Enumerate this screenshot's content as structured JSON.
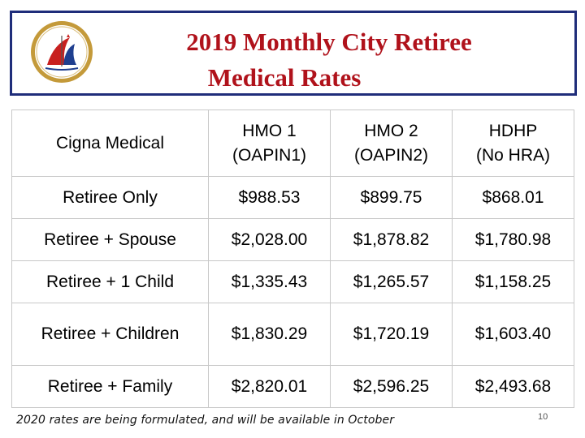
{
  "title": {
    "line1": "2019 Monthly City Retiree",
    "line2": "Medical Rates"
  },
  "table": {
    "headers": [
      {
        "line1": "Cigna Medical",
        "line2": ""
      },
      {
        "line1": "HMO 1",
        "line2": "(OAPIN1)"
      },
      {
        "line1": "HMO 2",
        "line2": "(OAPIN2)"
      },
      {
        "line1": "HDHP",
        "line2": "(No HRA)"
      }
    ],
    "rows": [
      {
        "label": "Retiree Only",
        "hmo1": "$988.53",
        "hmo2": "$899.75",
        "hdhp": "$868.01"
      },
      {
        "label": "Retiree + Spouse",
        "hmo1": "$2,028.00",
        "hmo2": "$1,878.82",
        "hdhp": "$1,780.98"
      },
      {
        "label": "Retiree + 1 Child",
        "hmo1": "$1,335.43",
        "hmo2": "$1,265.57",
        "hdhp": "$1,158.25"
      },
      {
        "label": "Retiree + Children",
        "hmo1": "$1,830.29",
        "hmo2": "$1,720.19",
        "hdhp": "$1,603.40"
      },
      {
        "label": "Retiree + Family",
        "hmo1": "$2,820.01",
        "hmo2": "$2,596.25",
        "hdhp": "$2,493.68"
      }
    ]
  },
  "footnote": "2020 rates are being formulated, and will be available in October",
  "page_number": "10",
  "colors": {
    "title_red": "#b0121b",
    "border_navy": "#1f2d7a",
    "logo_gold": "#c49a3a"
  },
  "logo": {
    "icon": "city-seal-icon"
  }
}
